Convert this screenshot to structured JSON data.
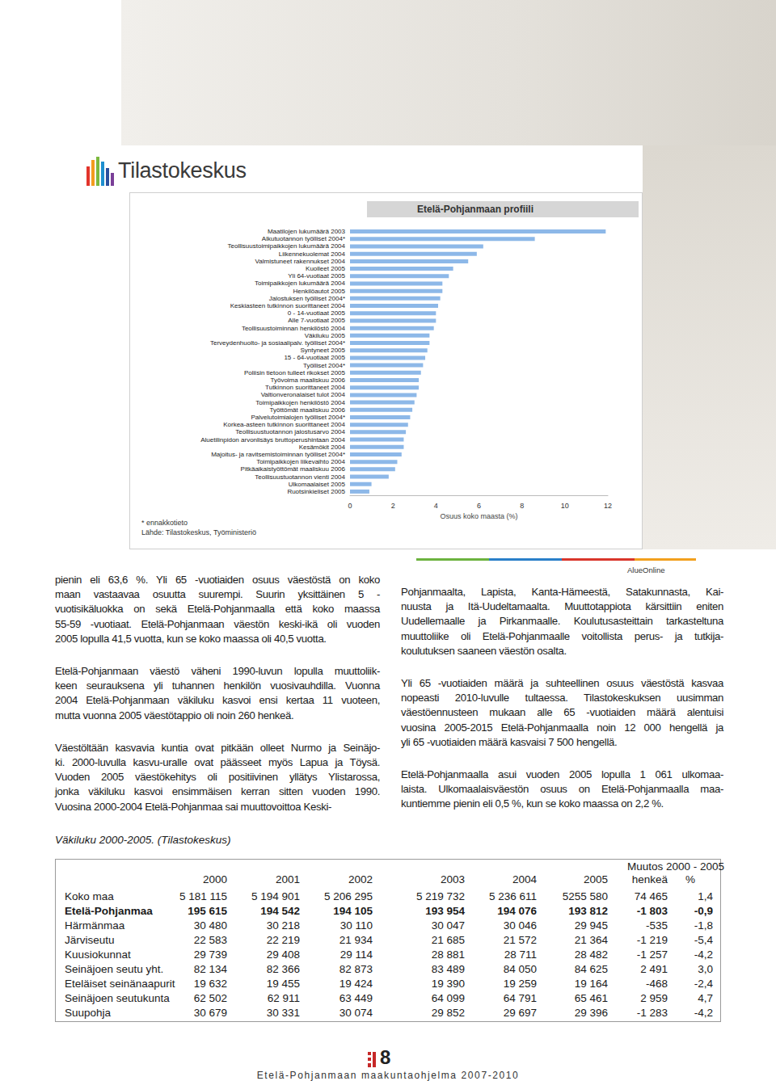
{
  "logo": "Tilastokeskus",
  "chart_data": {
    "type": "bar",
    "orientation": "horizontal",
    "title": "Etelä-Pohjanmaan profiili",
    "categories": [
      "Maatilojen lukumäärä 2003",
      "Alkutuotannon työlliset 2004*",
      "Teollisuustoimipaikkojen lukumäärä 2004",
      "Liikennekuolemat 2004",
      "Valmistuneet rakennukset 2004",
      "Kuolleet 2005",
      "Yli 64-vuotiaat 2005",
      "Toimipaikkojen lukumäärä 2004",
      "Henkilöautot 2005",
      "Jalostuksen työlliset 2004*",
      "Keskiasteen tutkinnon suorittaneet 2004",
      "0 - 14-vuotiaat 2005",
      "Alle 7-vuotiaat 2005",
      "Teollisuustoiminnan henkilöstö 2004",
      "Väkiluku 2005",
      "Terveydenhuolto- ja sosiaalipalv. työlliset 2004*",
      "Syntyneet 2005",
      "15 - 64-vuotiaat 2005",
      "Työlliset 2004*",
      "Poliisin tietoon tulleet rikokset 2005",
      "Työvoima maaliskuu 2006",
      "Tutkinnon suorittaneet 2004",
      "Valtionveronalaiset tulot 2004",
      "Toimipaikkojen henkilöstö 2004",
      "Työttömät maaliskuu 2006",
      "Palvelutoimialojen työlliset 2004*",
      "Korkea-asteen tutkinnon suorittaneet 2004",
      "Teollisuustuotannon jalostusarvo 2004",
      "Aluetilinpidon arvonlisäys bruttoperushintaan 2004",
      "Kesämökit 2004",
      "Majoitus- ja ravitsemistoiminnan työlliset 2004*",
      "Toimipaikkojen liikevaihto 2004",
      "Pitkäaikaistyöttömät maaliskuu 2006",
      "Teollisuustuotannon vienti 2004",
      "Ulkomaalaiset 2005",
      "Ruotsinkieliset 2005"
    ],
    "values": [
      11.9,
      8.6,
      6.2,
      5.9,
      5.5,
      4.8,
      4.6,
      4.3,
      4.3,
      4.2,
      4.1,
      4.0,
      4.0,
      3.9,
      3.7,
      3.7,
      3.6,
      3.5,
      3.4,
      3.3,
      3.2,
      3.2,
      3.1,
      3.0,
      2.9,
      2.8,
      2.7,
      2.6,
      2.5,
      2.5,
      2.4,
      2.2,
      2.1,
      1.8,
      1.0,
      0.9
    ],
    "color": "#8db8e8",
    "xlabel": "Osuus koko maasta (%)",
    "xlim": [
      0,
      12
    ],
    "xticks": [
      0,
      2,
      4,
      6,
      8,
      10,
      12
    ],
    "grid": false,
    "data_labels": false,
    "notes": [
      "* ennakkotieto",
      "Lähde: Tilastokeskus, Työministeriö"
    ]
  },
  "brand": "AlueOnline",
  "columns": {
    "left": [
      [
        "pienin eli 63,6 %. Yli 65 -vuotiaiden osuus väestöstä on koko",
        "maan vastaavaa osuutta suurempi. Suurin yksittäinen 5 -",
        "vuotisikäluokka on sekä Etelä-Pohjanmaalla että koko maassa",
        "55-59 -vuotiaat. Etelä-Pohjanmaan väestön keski-ikä oli vuoden",
        "2005 lopulla 41,5 vuotta, kun se koko maassa oli 40,5 vuotta."
      ],
      [
        "Etelä-Pohjanmaan väestö väheni 1990-luvun lopulla muuttoliik-",
        "keen seurauksena yli tuhannen henkilön vuosivauhdilla. Vuonna",
        "2004 Etelä-Pohjanmaan väkiluku kasvoi ensi kertaa 11 vuoteen,",
        "mutta vuonna 2005 väestötappio oli noin 260 henkeä."
      ],
      [
        "Väestöltään kasvavia kuntia ovat pitkään olleet Nurmo ja Seinäjo-",
        "ki. 2000-luvulla kasvu-uralle ovat päässeet myös Lapua ja Töysä.",
        "Vuoden 2005 väestökehitys oli positiivinen yllätys Ylistarossa,",
        "jonka väkiluku kasvoi ensimmäisen kerran sitten vuoden 1990.",
        "Vuosina 2000-2004 Etelä-Pohjanmaa sai muuttovoittoa Keski-"
      ]
    ],
    "right": [
      [
        "Pohjanmaalta, Lapista, Kanta-Hämeestä, Satakunnasta, Kai-",
        "nuusta ja Itä-Uudeltamaalta. Muuttotappiota kärsittiin eniten",
        "Uudellemaalle ja Pirkanmaalle. Koulutusasteittain tarkasteltuna",
        "muuttoliike oli Etelä-Pohjanmaalle voitollista perus- ja tutkija-",
        "koulutuksen saaneen väestön osalta."
      ],
      [
        "Yli 65 -vuotiaiden määrä ja suhteellinen osuus väestöstä kasvaa",
        "nopeasti 2010-luvulle tultaessa. Tilastokeskuksen uusimman",
        "väestöennusteen mukaan alle 65 -vuotiaiden määrä alentuisi",
        "vuosina 2005-2015 Etelä-Pohjanmaalla noin 12 000 hengellä ja",
        "yli 65 -vuotiaiden määrä kasvaisi 7 500 hengellä."
      ],
      [
        "Etelä-Pohjanmaalla asui vuoden 2005 lopulla 1 061 ulkomaa-",
        "laista. Ulkomaalaisväestön osuus on Etelä-Pohjanmaalla maa-",
        "kuntiemme pienin eli 0,5 %, kun se koko maassa on 2,2 %."
      ]
    ]
  },
  "table": {
    "caption": "Väkiluku 2000-2005. (Tilastokeskus)",
    "group_header": "Muutos 2000 - 2005",
    "header": [
      "2000",
      "2001",
      "2002",
      "2003",
      "2004",
      "2005",
      "henkeä",
      "%"
    ],
    "rows": [
      [
        "Koko maa",
        "5 181 115",
        "5 194 901",
        "5 206 295",
        "5 219 732",
        "5 236 611",
        "5255 580",
        "74 465",
        "1,4"
      ],
      [
        "Etelä-Pohjanmaa",
        "195 615",
        "194 542",
        "194 105",
        "193 954",
        "194 076",
        "193 812",
        "-1 803",
        "-0,9"
      ],
      [
        "Härmänmaa",
        "30 480",
        "30 218",
        "30 110",
        "30 047",
        "30 046",
        "29 945",
        "-535",
        "-1,8"
      ],
      [
        "Järviseutu",
        "22 583",
        "22 219",
        "21 934",
        "21 685",
        "21 572",
        "21 364",
        "-1 219",
        "-5,4"
      ],
      [
        "Kuusiokunnat",
        "29 739",
        "29 408",
        "29 114",
        "28 881",
        "28 711",
        "28 482",
        "-1 257",
        "-4,2"
      ],
      [
        "Seinäjoen seutu yht.",
        "82 134",
        "82 366",
        "82 873",
        "83 489",
        "84 050",
        "84 625",
        "2 491",
        "3,0"
      ],
      [
        "Eteläiset seinänaapurit",
        "19 632",
        "19 455",
        "19 424",
        "19 390",
        "19 259",
        "19 164",
        "-468",
        "-2,4"
      ],
      [
        "Seinäjoen seutukunta",
        "62 502",
        "62 911",
        "63 449",
        "64 099",
        "64 791",
        "65 461",
        "2 959",
        "4,7"
      ],
      [
        "Suupohja",
        "30 679",
        "30 331",
        "30 074",
        "29 852",
        "29 697",
        "29 396",
        "-1 283",
        "-4,2"
      ]
    ]
  },
  "footer": {
    "page": "8",
    "text": "Etelä-Pohjanmaan maakuntaohjelma 2007-2010"
  }
}
